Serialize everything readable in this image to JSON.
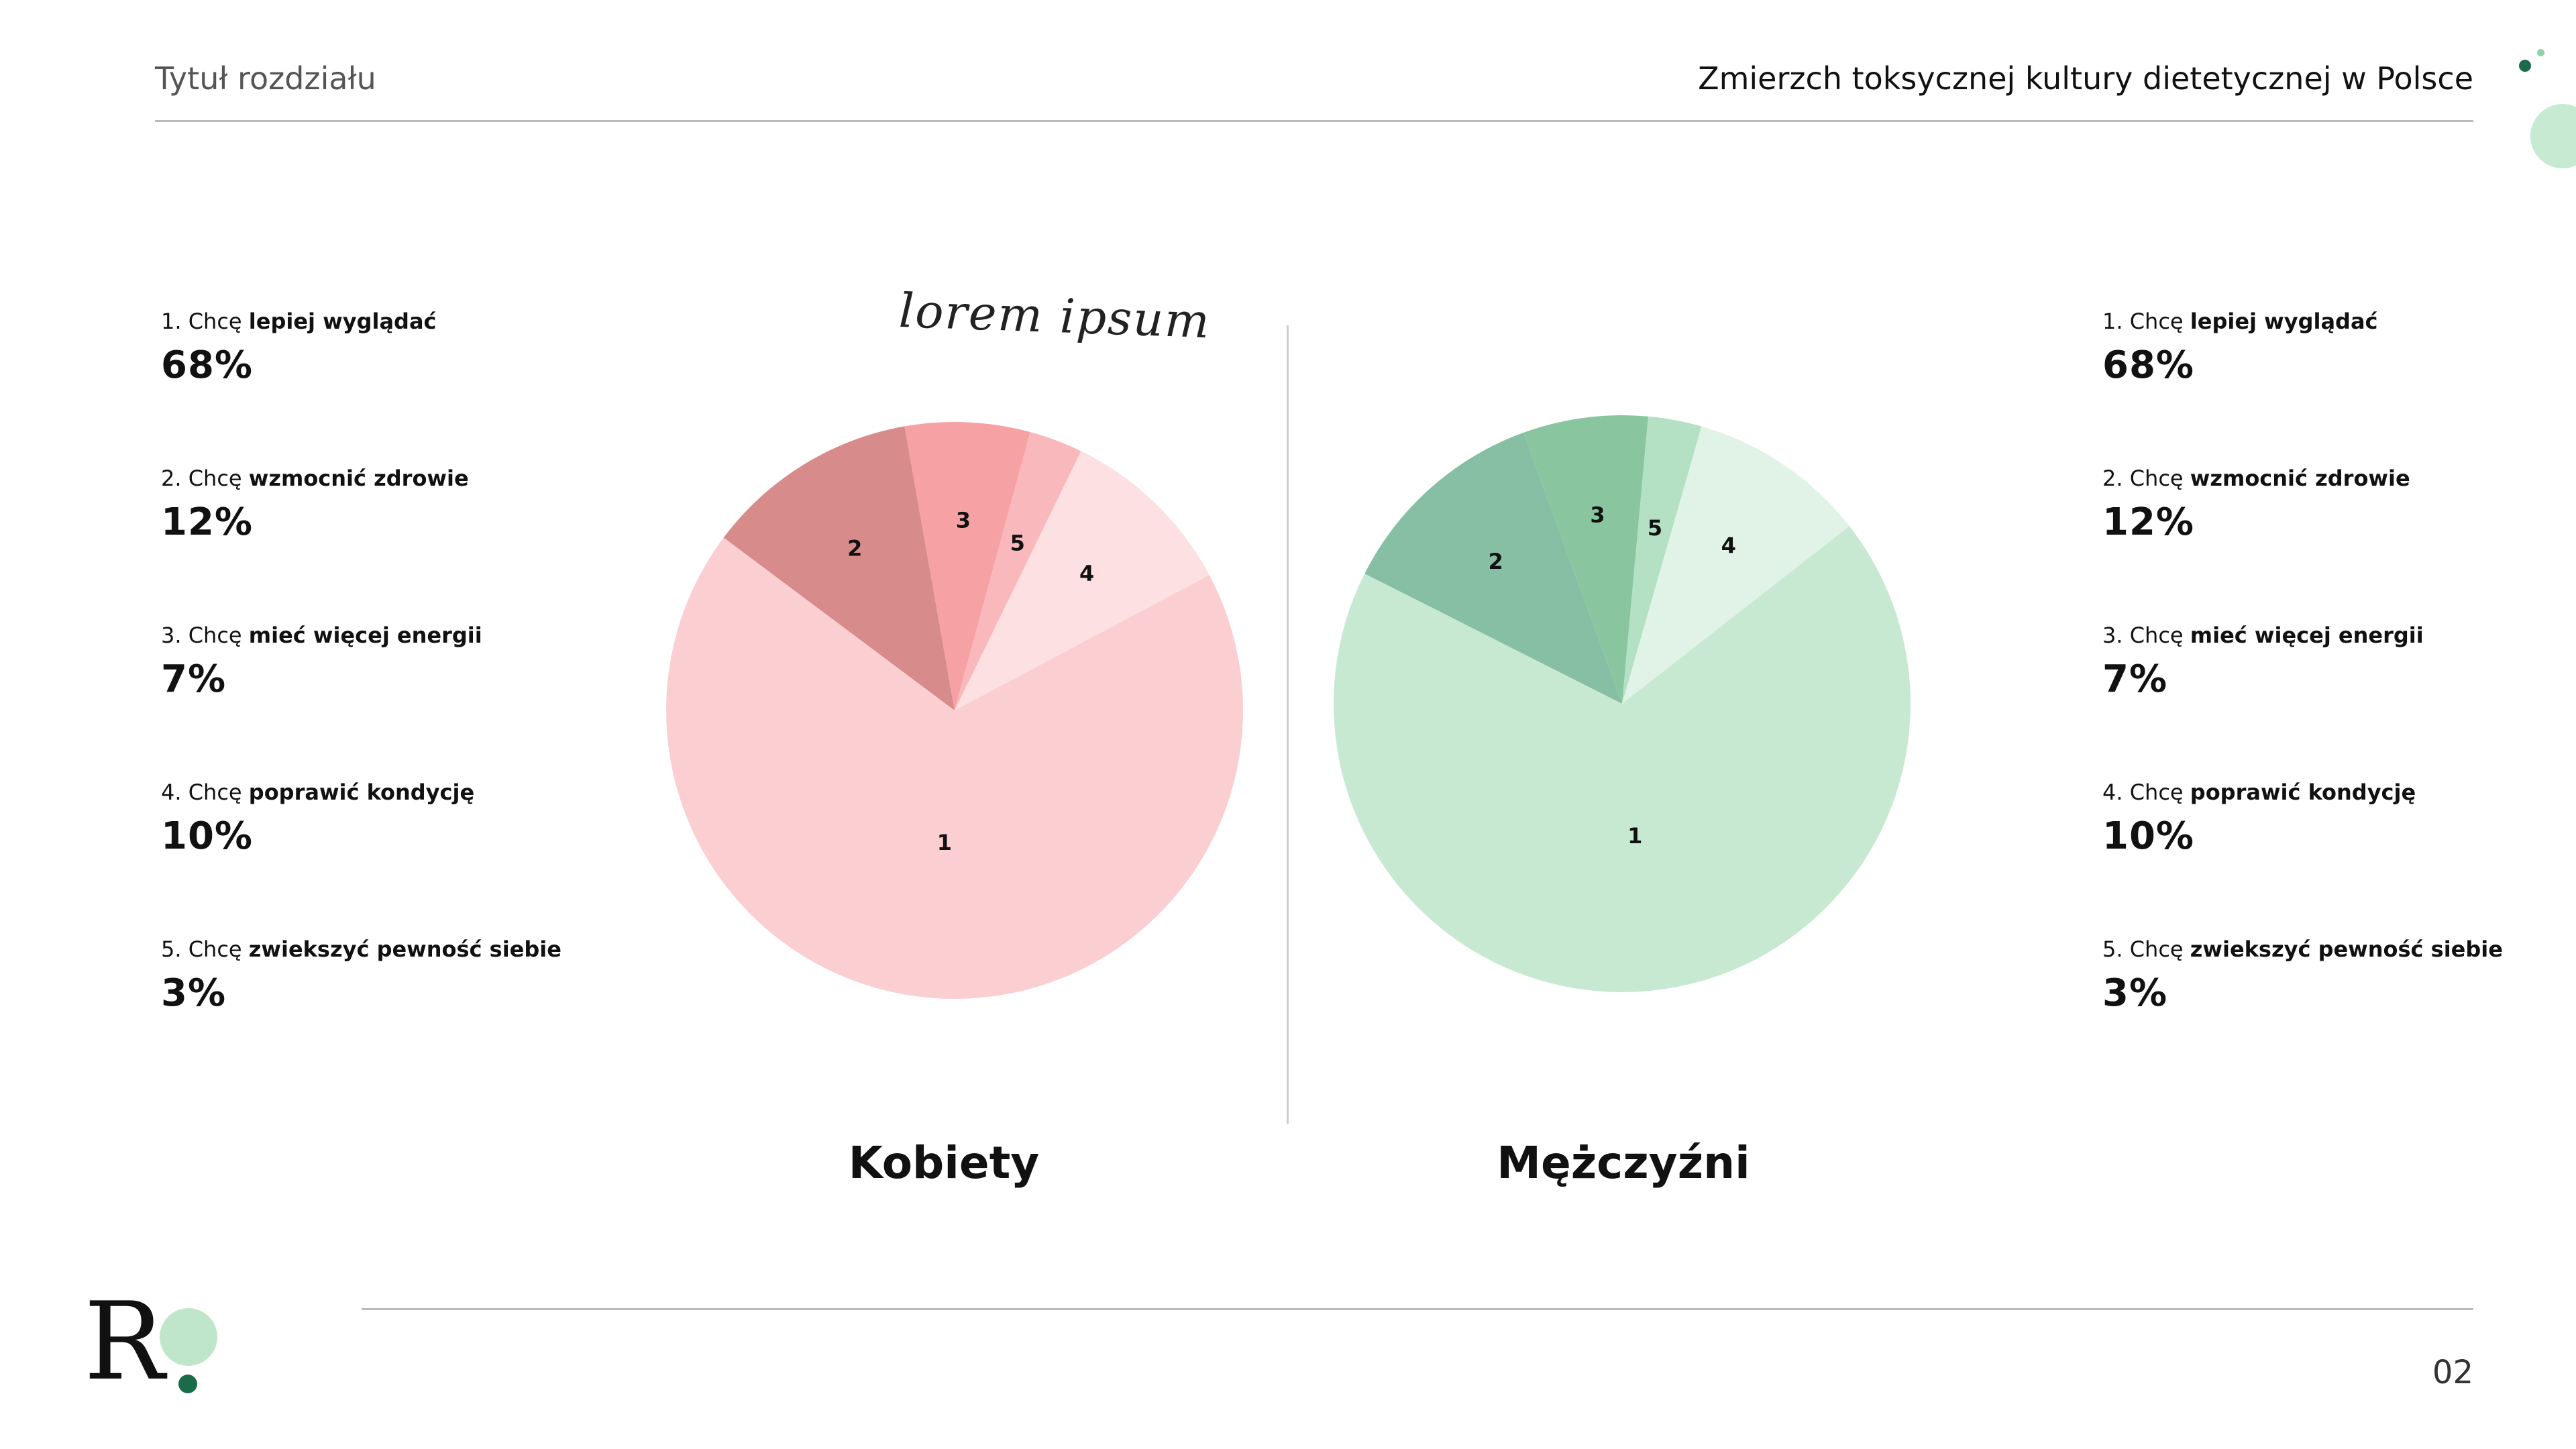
{
  "header": {
    "section_title": "Tytuł rozdziału",
    "document_title": "Zmierzch toksycznej kultury dietetycznej w Polsce"
  },
  "annotation": "lorem ipsum",
  "page_number": "02",
  "legend_left": [
    {
      "prefix": "1. Chcę ",
      "bold": "lepiej wyglądać",
      "value": "68%"
    },
    {
      "prefix": "2. Chcę ",
      "bold": "wzmocnić zdrowie",
      "value": "12%"
    },
    {
      "prefix": "3. Chcę ",
      "bold": "mieć więcej energii",
      "value": "7%"
    },
    {
      "prefix": "4. Chcę ",
      "bold": "poprawić kondycję",
      "value": "10%"
    },
    {
      "prefix": "5. Chcę ",
      "bold": "zwiekszyć pewność siebie",
      "value": "3%"
    }
  ],
  "legend_right": [
    {
      "prefix": "1. Chcę ",
      "bold": "lepiej wyglądać",
      "value": "68%"
    },
    {
      "prefix": "2. Chcę ",
      "bold": "wzmocnić zdrowie",
      "value": "12%"
    },
    {
      "prefix": "3. Chcę ",
      "bold": "mieć więcej energii",
      "value": "7%"
    },
    {
      "prefix": "4. Chcę ",
      "bold": "poprawić kondycję",
      "value": "10%"
    },
    {
      "prefix": "5. Chcę ",
      "bold": "zwiekszyć pewność siebie",
      "value": "3%"
    }
  ],
  "colors": {
    "women": [
      "#fbcfd2",
      "#d88b8b",
      "#f6a2a5",
      "#fde0e2",
      "#f9b9bc"
    ],
    "men": [
      "#c7e9d2",
      "#86bfa3",
      "#89c6a0",
      "#e1f3e7",
      "#b4e0c4"
    ],
    "accent_dark": "#1a6b4a",
    "accent_light": "#bfe6cb"
  },
  "chart_data": [
    {
      "type": "pie",
      "title": "Kobiety",
      "labels": [
        "1",
        "2",
        "3",
        "4",
        "5"
      ],
      "values": [
        68,
        12,
        7,
        10,
        3
      ],
      "order_clockwise_from_top": [
        "3",
        "5",
        "4",
        "1",
        "2"
      ]
    },
    {
      "type": "pie",
      "title": "Mężczyźni",
      "labels": [
        "1",
        "2",
        "3",
        "4",
        "5"
      ],
      "values": [
        68,
        12,
        7,
        10,
        3
      ],
      "order_clockwise_from_top": [
        "3",
        "5",
        "4",
        "1",
        "2"
      ]
    }
  ]
}
